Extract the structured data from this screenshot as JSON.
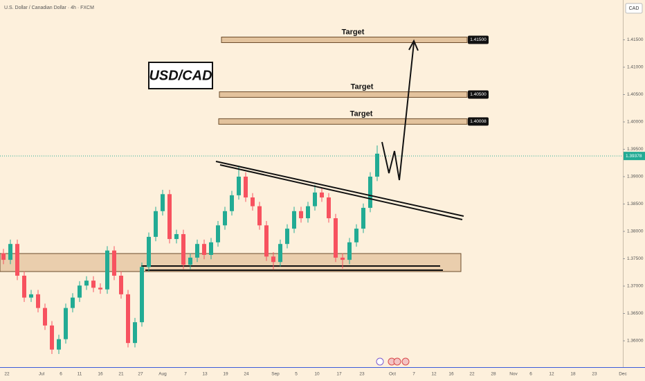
{
  "chart_data": {
    "type": "candlestick",
    "title": "U.S. Dollar / Canadian Dollar · 4h · FXCM",
    "currency": "CAD",
    "badge": "USD/CAD",
    "up_color": "#22ab94",
    "down_color": "#f7525f",
    "ylim": [
      1.35519,
      1.42228
    ],
    "yticks": [
      {
        "value": 1.36,
        "label": "1.36000"
      },
      {
        "value": 1.365,
        "label": "1.36500"
      },
      {
        "value": 1.37,
        "label": "1.37000"
      },
      {
        "value": 1.375,
        "label": "1.37500"
      },
      {
        "value": 1.38,
        "label": "1.38000"
      },
      {
        "value": 1.385,
        "label": "1.38500"
      },
      {
        "value": 1.39,
        "label": "1.39000"
      },
      {
        "value": 1.395,
        "label": "1.39500"
      },
      {
        "value": 1.4,
        "label": "1.40000"
      },
      {
        "value": 1.405,
        "label": "1.40500"
      },
      {
        "value": 1.41,
        "label": "1.41000"
      },
      {
        "value": 1.415,
        "label": "1.41500"
      }
    ],
    "x_labels": [
      "22",
      "Jul",
      "6",
      "11",
      "16",
      "21",
      "27",
      "Aug",
      "7",
      "13",
      "19",
      "24",
      "Sep",
      "5",
      "10",
      "17",
      "23",
      "Oct",
      "7",
      "12",
      "16",
      "22",
      "28",
      "Nov",
      "6",
      "12",
      "18",
      "23",
      "Dec"
    ],
    "last_price": {
      "value": 1.39378,
      "label": "1.39378"
    },
    "targets": [
      {
        "text": "Target",
        "price": {
          "value": 1.415,
          "label": "1.41500"
        }
      },
      {
        "text": "Target",
        "price": {
          "value": 1.405,
          "label": "1.40500"
        }
      },
      {
        "text": "Target",
        "price": {
          "value": 1.40008,
          "label": "1.40008"
        }
      }
    ],
    "open": [
      1.376,
      1.3748,
      1.3777,
      1.3719,
      1.3679,
      1.3685,
      1.366,
      1.3628,
      1.3584,
      1.3603,
      1.366,
      1.3679,
      1.3701,
      1.371,
      1.3697,
      1.3694,
      1.3765,
      1.3719,
      1.3685,
      1.3596,
      1.3634,
      1.3735,
      1.379,
      1.3837,
      1.3868,
      1.3786,
      1.3795,
      1.3739,
      1.3752,
      1.3777,
      1.3757,
      1.378,
      1.3811,
      1.3837,
      1.3866,
      1.39,
      1.3862,
      1.3846,
      1.3811,
      1.3754,
      1.3744,
      1.3777,
      1.3805,
      1.3837,
      1.3824,
      1.3846,
      1.3871,
      1.3862,
      1.3824,
      1.3752,
      1.3748,
      1.378,
      1.3805,
      1.3843,
      1.39
    ],
    "high": [
      1.3768,
      1.3785,
      1.3785,
      1.3727,
      1.3693,
      1.3693,
      1.3668,
      1.3636,
      1.3611,
      1.3668,
      1.3687,
      1.3709,
      1.3718,
      1.3718,
      1.3705,
      1.3773,
      1.3773,
      1.3727,
      1.3693,
      1.3642,
      1.3743,
      1.3798,
      1.3845,
      1.3876,
      1.3876,
      1.3803,
      1.3803,
      1.376,
      1.3785,
      1.3785,
      1.3788,
      1.3819,
      1.3845,
      1.3874,
      1.392,
      1.3908,
      1.387,
      1.3854,
      1.3819,
      1.3762,
      1.3785,
      1.3813,
      1.3845,
      1.3845,
      1.3854,
      1.3885,
      1.3879,
      1.387,
      1.3832,
      1.376,
      1.3788,
      1.3813,
      1.3851,
      1.3908,
      1.3957
    ],
    "low": [
      1.374,
      1.374,
      1.3711,
      1.3671,
      1.3671,
      1.3652,
      1.362,
      1.3576,
      1.3576,
      1.3595,
      1.3652,
      1.3671,
      1.3693,
      1.3689,
      1.3686,
      1.3686,
      1.3711,
      1.3677,
      1.3588,
      1.3588,
      1.3626,
      1.3727,
      1.3782,
      1.3829,
      1.3778,
      1.3778,
      1.3731,
      1.3731,
      1.3744,
      1.3749,
      1.3749,
      1.3772,
      1.3803,
      1.3829,
      1.3858,
      1.3854,
      1.3838,
      1.3803,
      1.3746,
      1.373,
      1.3736,
      1.3769,
      1.3797,
      1.3816,
      1.3816,
      1.3838,
      1.3854,
      1.3816,
      1.3744,
      1.3732,
      1.374,
      1.3772,
      1.3797,
      1.3835,
      1.3892
    ],
    "close": [
      1.3748,
      1.3777,
      1.3719,
      1.3679,
      1.3685,
      1.366,
      1.3628,
      1.3584,
      1.3603,
      1.366,
      1.3679,
      1.3701,
      1.371,
      1.3697,
      1.3694,
      1.3765,
      1.3719,
      1.3685,
      1.3596,
      1.3634,
      1.3735,
      1.379,
      1.3837,
      1.3868,
      1.3786,
      1.3795,
      1.3739,
      1.3752,
      1.3777,
      1.3757,
      1.378,
      1.3811,
      1.3837,
      1.3866,
      1.39,
      1.3862,
      1.3846,
      1.3811,
      1.3754,
      1.3744,
      1.3777,
      1.3805,
      1.3837,
      1.3824,
      1.3846,
      1.3871,
      1.3862,
      1.3824,
      1.3752,
      1.3748,
      1.378,
      1.3805,
      1.3843,
      1.39,
      1.3942
    ]
  }
}
